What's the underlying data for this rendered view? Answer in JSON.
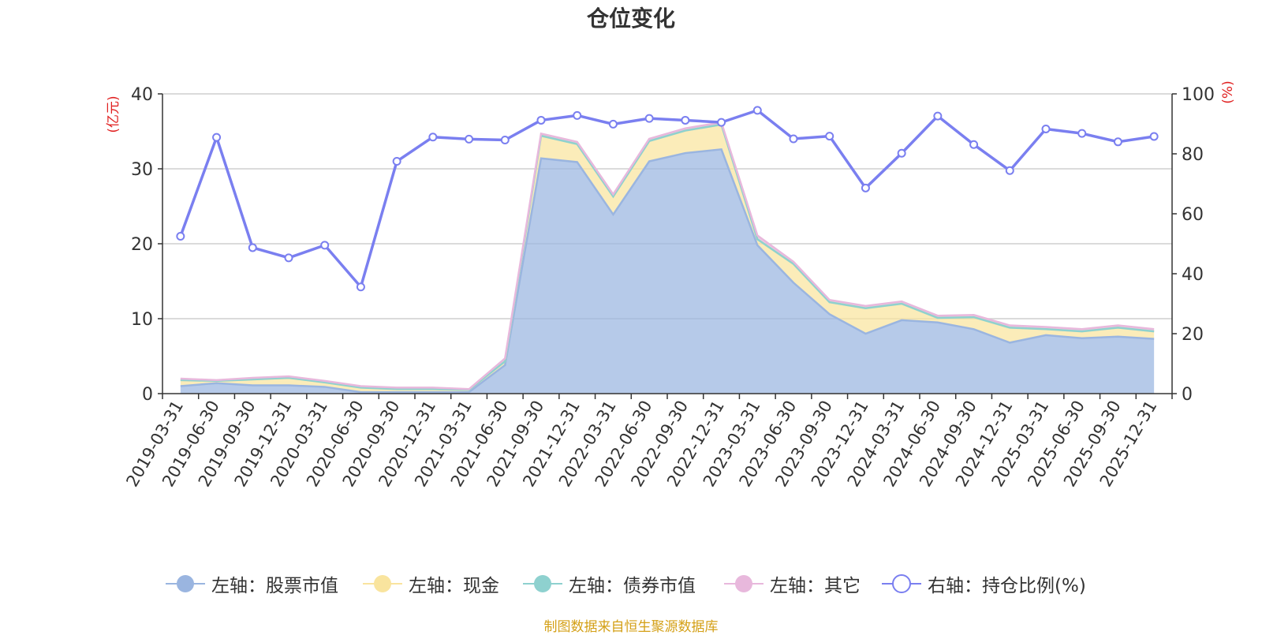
{
  "title": "仓位变化",
  "footer": "制图数据来自恒生聚源数据库",
  "chart_data": {
    "type": "area",
    "title": "仓位变化",
    "categories": [
      "2019-03-31",
      "2019-06-30",
      "2019-09-30",
      "2019-12-31",
      "2020-03-31",
      "2020-06-30",
      "2020-09-30",
      "2020-12-31",
      "2021-03-31",
      "2021-06-30",
      "2021-09-30",
      "2021-12-31",
      "2022-03-31",
      "2022-06-30",
      "2022-09-30",
      "2022-12-31",
      "2023-03-31",
      "2023-06-30",
      "2023-09-30",
      "2023-12-31",
      "2024-03-31",
      "2024-06-30",
      "2024-09-30",
      "2024-12-31",
      "2025-03-31",
      "2025-06-30",
      "2025-09-30",
      "2025-12-31"
    ],
    "left_axis": {
      "label": "(亿元)",
      "ylim": [
        0,
        40
      ],
      "ticks": [
        0,
        10,
        20,
        30,
        40
      ]
    },
    "right_axis": {
      "label": "(%)",
      "ylim": [
        0,
        100
      ],
      "ticks": [
        0,
        20,
        40,
        60,
        80,
        100
      ]
    },
    "series": [
      {
        "name": "左轴：股票市值",
        "axis": "left",
        "stack": true,
        "color": "#9ab5e0",
        "values": [
          1.0,
          1.4,
          1.1,
          1.1,
          0.9,
          0.2,
          0.2,
          0.2,
          0.2,
          3.8,
          31.4,
          30.9,
          23.9,
          31.0,
          32.1,
          32.6,
          19.8,
          14.8,
          10.6,
          8.0,
          9.8,
          9.5,
          8.6,
          6.8,
          7.8,
          7.4,
          7.6,
          7.3
        ]
      },
      {
        "name": "左轴：现金",
        "axis": "left",
        "stack": true,
        "color": "#f9e49e",
        "values": [
          0.8,
          0.3,
          0.8,
          1.0,
          0.6,
          0.6,
          0.4,
          0.4,
          0.3,
          0.5,
          3.0,
          2.4,
          2.4,
          2.7,
          3.0,
          3.3,
          0.8,
          2.5,
          1.6,
          3.4,
          2.2,
          0.6,
          1.6,
          2.0,
          0.8,
          0.9,
          1.2,
          1.0
        ]
      },
      {
        "name": "左轴：债券市值",
        "axis": "left",
        "stack": true,
        "color": "#8ed1cf",
        "values": [
          0.0,
          0.0,
          0.0,
          0.0,
          0.0,
          0.0,
          0.0,
          0.0,
          0.0,
          0.0,
          0.0,
          0.0,
          0.0,
          0.0,
          0.0,
          0.0,
          0.0,
          0.0,
          0.0,
          0.0,
          0.0,
          0.0,
          0.0,
          0.0,
          0.0,
          0.0,
          0.0,
          0.0
        ]
      },
      {
        "name": "左轴：其它",
        "axis": "left",
        "stack": true,
        "color": "#e8b8dc",
        "values": [
          0.2,
          0.1,
          0.2,
          0.2,
          0.2,
          0.2,
          0.2,
          0.2,
          0.1,
          0.4,
          0.3,
          0.3,
          0.3,
          0.3,
          0.3,
          0.3,
          0.5,
          0.3,
          0.3,
          0.3,
          0.3,
          0.3,
          0.3,
          0.3,
          0.3,
          0.3,
          0.3,
          0.3
        ]
      },
      {
        "name": "右轴：持仓比例(%)",
        "axis": "right",
        "stack": false,
        "color": "#7a7ff0",
        "values": [
          52.5,
          85.5,
          48.7,
          45.3,
          49.5,
          35.6,
          77.5,
          85.6,
          84.9,
          84.6,
          91.2,
          92.8,
          89.9,
          91.8,
          91.2,
          90.5,
          94.5,
          85.0,
          85.9,
          68.6,
          80.2,
          92.6,
          83.1,
          74.4,
          88.3,
          86.8,
          84.0,
          85.8
        ]
      }
    ]
  }
}
